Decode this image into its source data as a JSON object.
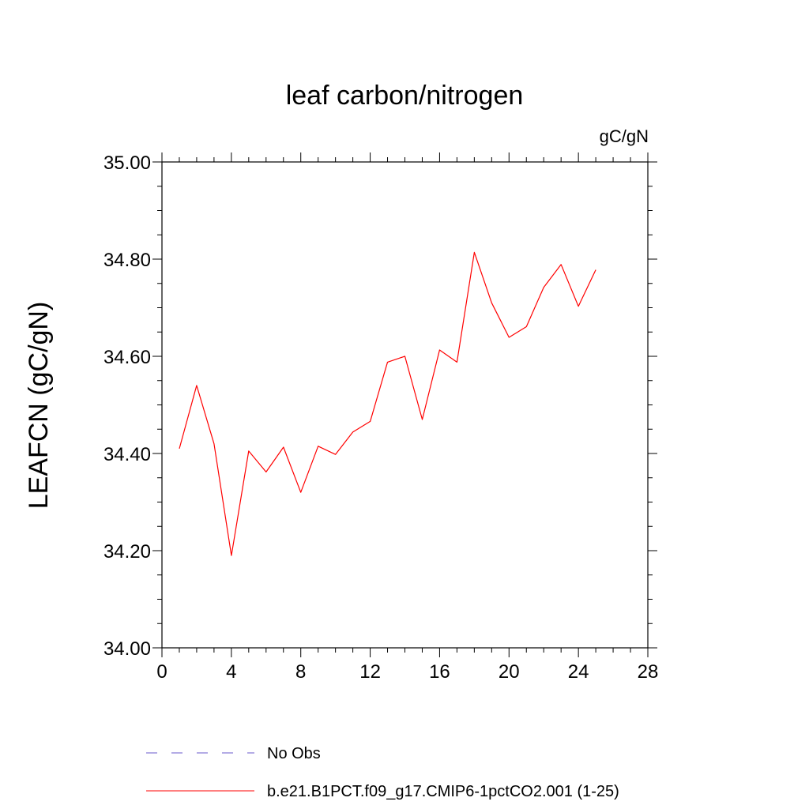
{
  "chart_data": {
    "type": "line",
    "title": "leaf carbon/nitrogen",
    "units": "gC/gN",
    "ylabel": "LEAFCN  (gC/gN)",
    "xlabel": "",
    "xlim": [
      0,
      28
    ],
    "ylim": [
      34.0,
      35.0
    ],
    "xticks": [
      0,
      4,
      8,
      12,
      16,
      20,
      24,
      28
    ],
    "xtick_labels": [
      "0",
      "4",
      "8",
      "12",
      "16",
      "20",
      "24",
      "28"
    ],
    "yticks": [
      34.0,
      34.2,
      34.4,
      34.6,
      34.8,
      35.0
    ],
    "ytick_labels": [
      "34.00",
      "34.20",
      "34.40",
      "34.60",
      "34.80",
      "35.00"
    ],
    "grid": false,
    "legend_position": "bottom",
    "series": [
      {
        "name": "b.e21.B1PCT.f09_g17.CMIP6-1pctCO2.001 (1-25)",
        "color": "#ff0000",
        "style": "solid",
        "x": [
          1,
          2,
          3,
          4,
          5,
          6,
          7,
          8,
          9,
          10,
          11,
          12,
          13,
          14,
          15,
          16,
          17,
          18,
          19,
          20,
          21,
          22,
          23,
          24,
          25
        ],
        "values": [
          34.41,
          34.54,
          34.42,
          34.19,
          34.405,
          34.362,
          34.413,
          34.32,
          34.415,
          34.398,
          34.444,
          34.466,
          34.588,
          34.6,
          34.47,
          34.613,
          34.588,
          34.814,
          34.71,
          34.639,
          34.661,
          34.742,
          34.789,
          34.703,
          34.778
        ]
      }
    ],
    "legend": [
      {
        "label": "No Obs",
        "color": "#6a5acd",
        "style": "dashed"
      },
      {
        "label": "b.e21.B1PCT.f09_g17.CMIP6-1pctCO2.001 (1-25)",
        "color": "#ff0000",
        "style": "solid"
      }
    ]
  }
}
